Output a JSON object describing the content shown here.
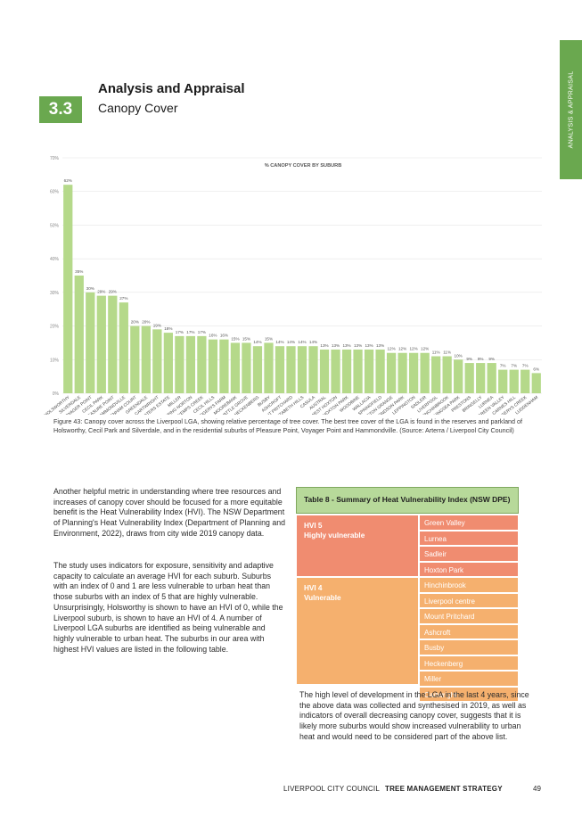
{
  "side_tab": "ANALYSIS & APPRAISAL",
  "section": {
    "number": "3.3",
    "title": "Analysis and Appraisal",
    "subtitle": "Canopy Cover"
  },
  "chart_data": {
    "type": "bar",
    "title": "% CANOPY COVER BY SUBURB",
    "ylim": [
      0,
      70
    ],
    "yticks": [
      "0%",
      "10%",
      "20%",
      "30%",
      "40%",
      "50%",
      "60%",
      "70%"
    ],
    "categories": [
      "HOLSWORTHY",
      "SILVERDALE",
      "VOYAGER POINT",
      "CECIL PARK",
      "PLEASURE POINT",
      "HAMMONDVILLE",
      "DENHAM COURT",
      "GREENDALE",
      "CARTWRIGHT",
      "LEN WATERS ESTATE",
      "MILLER",
      "CHIPPING NORTON",
      "KEMPS CREEK",
      "CECIL HILLS",
      "BADGERYS FARM",
      "MOOREBANK",
      "WATTLE GROVE",
      "HECKENBERG",
      "BUSBY",
      "ASHCROFT",
      "MOUNT PRITCHARD",
      "ELIZABETH HILLS",
      "CASULA",
      "AUSTRAL",
      "WEST HOXTON",
      "HOXTON PARK",
      "WOODBINE",
      "WALLACIA",
      "SPRINGFIELD",
      "MIDDLETON GRANGE",
      "EDMONDSON PARK",
      "LEPPINGTON",
      "SADLEIR",
      "LIVERPOOL",
      "HINCHINBROOK",
      "HORNINGSEA PARK",
      "PRESTONS",
      "BRINGELLY",
      "LURNEA",
      "GREEN VALLEY",
      "CARNES HILL",
      "BADGERYS CREEK",
      "LUDDENHAM"
    ],
    "values": [
      62,
      35,
      30,
      29,
      29,
      27,
      20,
      20,
      19,
      18,
      17,
      17,
      17,
      16,
      16,
      15,
      15,
      14,
      15,
      14,
      14,
      14,
      14,
      13,
      13,
      13,
      13,
      13,
      13,
      12,
      12,
      12,
      12,
      11,
      11,
      10,
      9,
      9,
      9,
      7,
      7,
      7,
      6
    ],
    "labels": [
      "62%",
      "35%",
      "30%",
      "29%",
      "29%",
      "27%",
      "20%",
      "20%",
      "19%",
      "18%",
      "17%",
      "17%",
      "17%",
      "16%",
      "16%",
      "15%",
      "15%",
      "14%",
      "15%",
      "14%",
      "14%",
      "14%",
      "14%",
      "13%",
      "13%",
      "13%",
      "13%",
      "13%",
      "13%",
      "12%",
      "12%",
      "12%",
      "12%",
      "11%",
      "11%",
      "10%",
      "9%",
      "9%",
      "9%",
      "7%",
      "7%",
      "7%",
      "6%"
    ],
    "color": "#b5d98a",
    "grid": true
  },
  "caption": "Figure 43: Canopy cover across the Liverpool LGA, showing relative percentage of tree cover. The best tree cover of the LGA is found in the reserves and parkland of Holsworthy, Cecil Park and Silverdale, and in the residential suburbs of Pleasure Point, Voyager Point and Hammondville. (Source: Arterra / Liverpool City Council)",
  "paragraphs": {
    "p1": "Another helpful metric in understanding where tree resources and increases of canopy cover should be focused for a more equitable benefit is the Heat Vulnerability Index (HVI). The NSW Department of Planning's Heat Vulnerability Index (Department of Planning and Environment, 2022), draws from city wide 2019 canopy data.",
    "p2": "The study uses indicators for exposure, sensitivity and adaptive capacity to calculate an average HVI for each suburb. Suburbs with an index of 0 and 1 are less vulnerable to urban heat than those suburbs with an index of 5 that are highly vulnerable. Unsurprisingly, Holsworthy is shown to have an HVI of 0, while the Liverpool suburb, is shown to have an HVI of 4. A number of Liverpool LGA suburbs are identified as being vulnerable and highly vulnerable to urban heat. The suburbs in our area with highest HVI values are listed in the following table.",
    "p3": "The high level of development in the LGA in the last 4 years, since the above data was collected and synthesised in 2019, as well as indicators of overall decreasing canopy cover, suggests that it is likely more suburbs would show increased vulnerability to urban heat and would need to be considered part of the above list."
  },
  "table": {
    "title": "Table 8 - Summary of Heat Vulnerability Index (NSW DPE)",
    "hvi5": {
      "label1": "HVI 5",
      "label2": "Highly vulnerable",
      "color": "#f08c70",
      "suburbs": [
        "Green Valley",
        "Lurnea",
        "Sadleir",
        "Hoxton Park"
      ]
    },
    "hvi4": {
      "label1": "HVI 4",
      "label2": "Vulnerable",
      "color": "#f5b06e",
      "suburbs": [
        "Hinchinbrook",
        "Liverpool centre",
        "Mount Pritchard",
        "Ashcroft",
        "Busby",
        "Heckenberg",
        "Miller",
        "Cartwright"
      ]
    }
  },
  "footer": {
    "org": "LIVERPOOL CITY COUNCIL",
    "doc": "TREE MANAGEMENT STRATEGY",
    "page": "49"
  }
}
